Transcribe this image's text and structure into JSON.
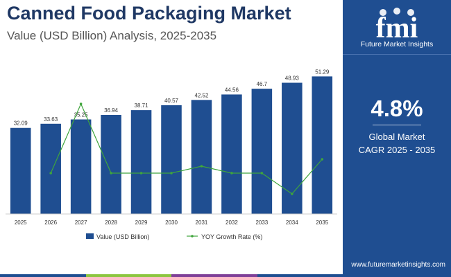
{
  "header": {
    "title": "Canned Food Packaging Market",
    "subtitle": "Value (USD Billion) Analysis, 2025-2035"
  },
  "sidebar": {
    "logo_text": "fmi",
    "brand": "Future Market Insights",
    "cagr_value": "4.8%",
    "cagr_label_line1": "Global Market",
    "cagr_label_line2": "CAGR 2025 - 2035",
    "url": "www.futuremarketinsights.com"
  },
  "colors": {
    "bar": "#1f4e91",
    "line": "#3fa53c",
    "title": "#1f3864",
    "sidebar": "#1f4e91",
    "bottom_strip": [
      "#1f4e91",
      "#8cc63f",
      "#7f3f98",
      "#1f4e91"
    ]
  },
  "chart_data": {
    "type": "bar",
    "categories": [
      "2025",
      "2026",
      "2027",
      "2028",
      "2029",
      "2030",
      "2031",
      "2032",
      "2033",
      "2034",
      "2035"
    ],
    "series": [
      {
        "name": "Value (USD Billion)",
        "kind": "bar",
        "values": [
          32.09,
          33.63,
          35.25,
          36.94,
          38.71,
          40.57,
          42.52,
          44.56,
          46.7,
          48.93,
          51.29
        ],
        "labels": [
          "32.09",
          "33.63",
          "35.25",
          "36.94",
          "38.71",
          "40.57",
          "42.52",
          "44.56",
          "46.7",
          "48.93",
          "51.29"
        ]
      },
      {
        "name": "YOY Growth Rate (%)",
        "kind": "line",
        "values": [
          null,
          4.8,
          4.9,
          4.8,
          4.8,
          4.8,
          4.81,
          4.8,
          4.8,
          4.77,
          4.82
        ]
      }
    ],
    "bar_ylim": [
      0,
      55
    ],
    "line_ylim": [
      4.74,
      4.92
    ],
    "legend": [
      "Value (USD Billion)",
      "YOY Growth Rate (%)"
    ],
    "legend_position": "bottom"
  }
}
